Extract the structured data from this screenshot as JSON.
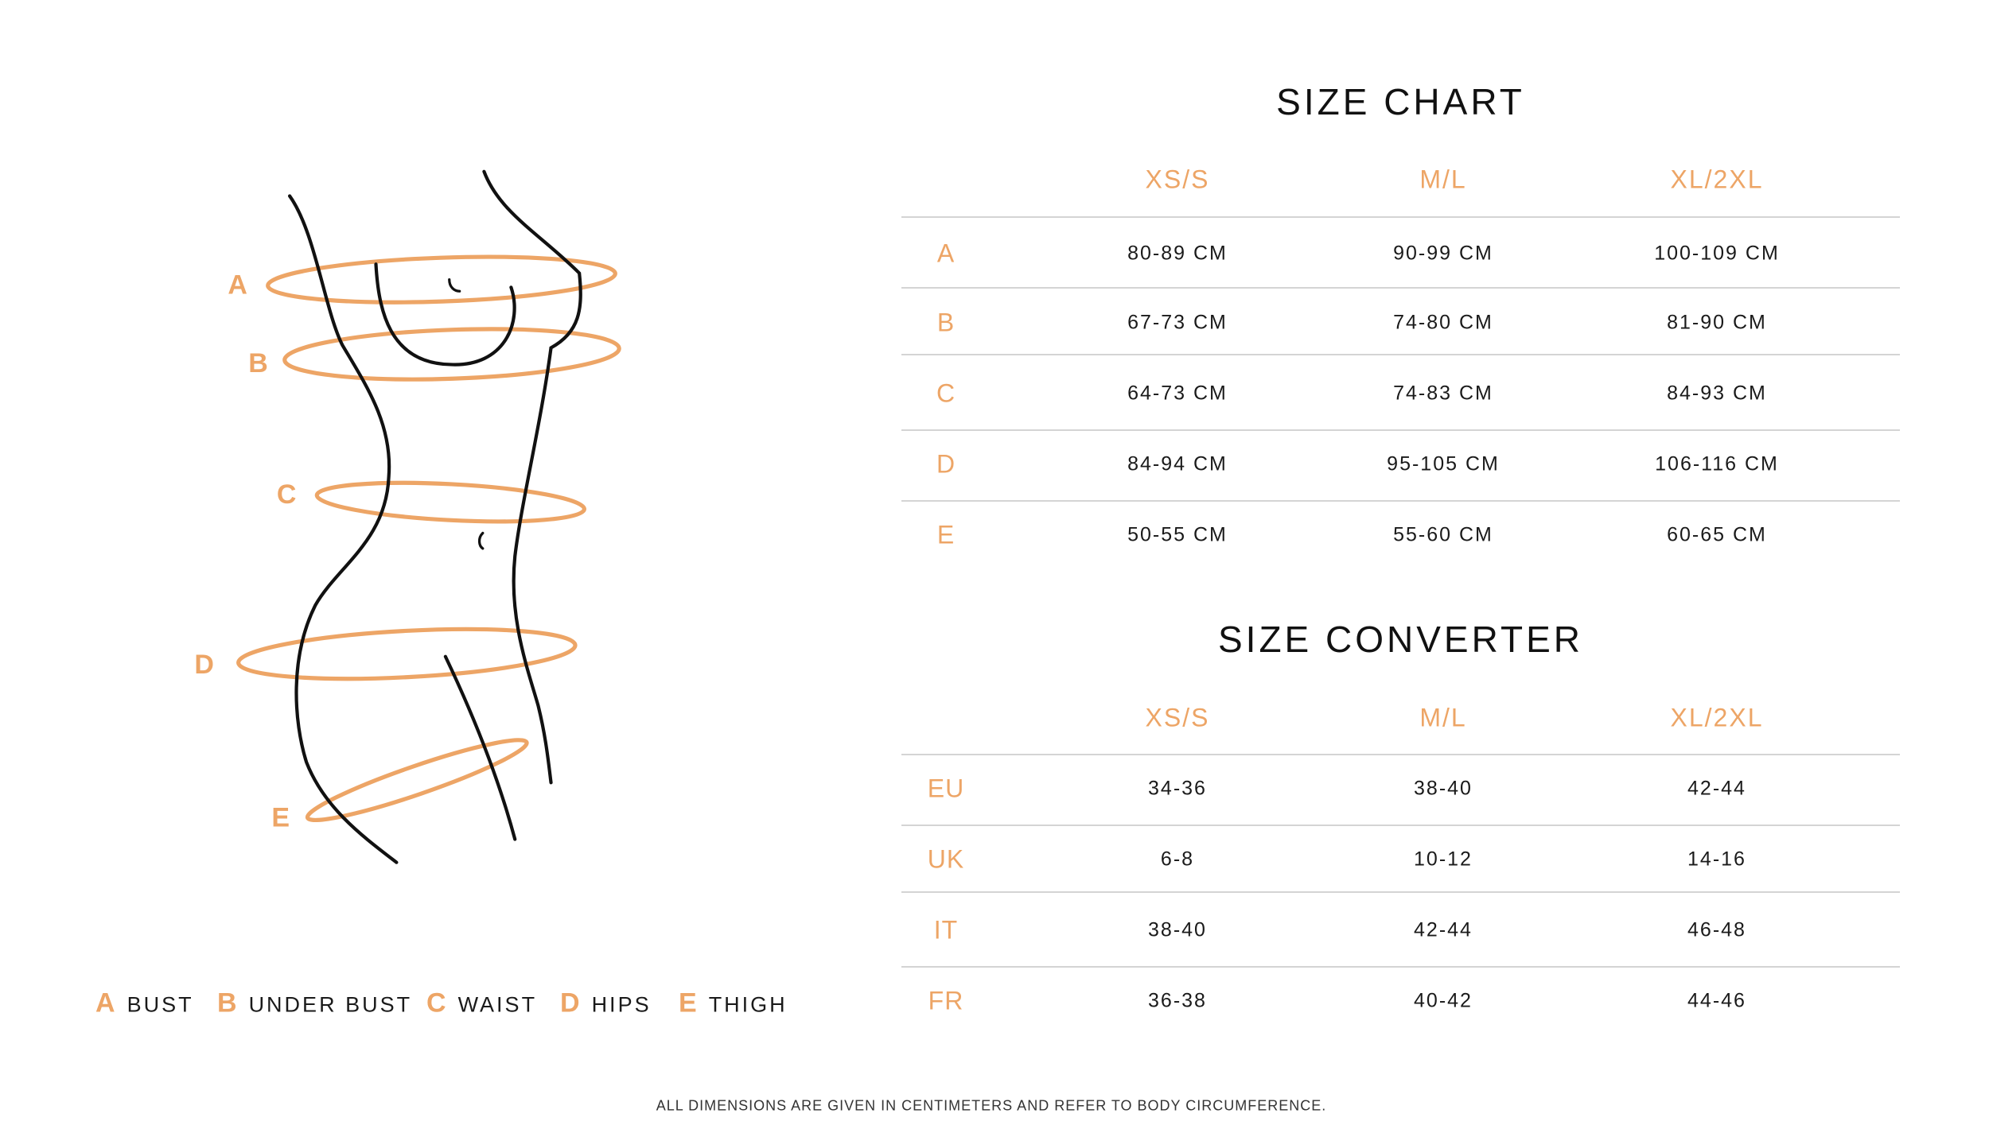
{
  "size_chart": {
    "title": "SIZE CHART",
    "columns": [
      "XS/S",
      "M/L",
      "XL/2XL"
    ],
    "rows": [
      {
        "label": "A",
        "values": [
          "80-89 CM",
          "90-99 CM",
          "100-109 CM"
        ]
      },
      {
        "label": "B",
        "values": [
          "67-73 CM",
          "74-80 CM",
          "81-90 CM"
        ]
      },
      {
        "label": "C",
        "values": [
          "64-73 CM",
          "74-83 CM",
          "84-93 CM"
        ]
      },
      {
        "label": "D",
        "values": [
          "84-94 CM",
          "95-105 CM",
          "106-116 CM"
        ]
      },
      {
        "label": "E",
        "values": [
          "50-55 CM",
          "55-60 CM",
          "60-65 CM"
        ]
      }
    ]
  },
  "size_converter": {
    "title": "SIZE CONVERTER",
    "columns": [
      "XS/S",
      "M/L",
      "XL/2XL"
    ],
    "rows": [
      {
        "label": "EU",
        "values": [
          "34-36",
          "38-40",
          "42-44"
        ]
      },
      {
        "label": "UK",
        "values": [
          "6-8",
          "10-12",
          "14-16"
        ]
      },
      {
        "label": "IT",
        "values": [
          "38-40",
          "42-44",
          "46-48"
        ]
      },
      {
        "label": "FR",
        "values": [
          "36-38",
          "40-42",
          "44-46"
        ]
      }
    ]
  },
  "figure": {
    "labels": [
      "A",
      "B",
      "C",
      "D",
      "E"
    ]
  },
  "legend": [
    {
      "letter": "A",
      "text": "BUST"
    },
    {
      "letter": "B",
      "text": "UNDER BUST"
    },
    {
      "letter": "C",
      "text": "WAIST"
    },
    {
      "letter": "D",
      "text": "HIPS"
    },
    {
      "letter": "E",
      "text": "THIGH"
    }
  ],
  "footer": "ALL DIMENSIONS ARE GIVEN IN CENTIMETERS AND REFER TO BODY CIRCUMFERENCE.",
  "colors": {
    "accent": "#eda566",
    "text": "#1a1a1a",
    "rule": "#d4d4d4"
  }
}
